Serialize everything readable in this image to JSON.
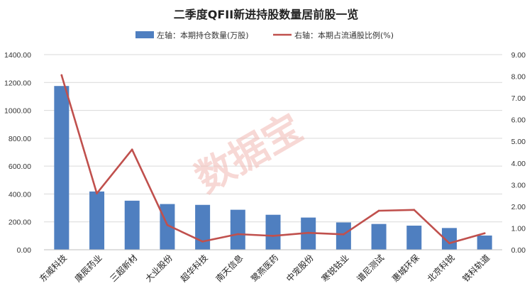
{
  "chart_data": {
    "type": "bar",
    "title": "二季度QFII新进持股数量居前股一览",
    "categories": [
      "东威科技",
      "康辰药业",
      "三超新材",
      "大业股份",
      "超华科技",
      "南天信息",
      "鹭燕医药",
      "中宠股份",
      "寒锐钴业",
      "谱尼测试",
      "惠城环保",
      "北京科锐",
      "铁科轨道"
    ],
    "series": [
      {
        "name": "左轴：本期持仓数量(万股)",
        "type": "bar",
        "axis": "left",
        "values": [
          1175,
          418,
          352,
          328,
          322,
          287,
          251,
          231,
          196,
          185,
          173,
          156,
          102
        ]
      },
      {
        "name": "右轴：本期占流通股比例(%)",
        "type": "line",
        "axis": "right",
        "values": [
          8.05,
          2.6,
          4.62,
          1.14,
          0.38,
          0.72,
          0.64,
          0.78,
          0.71,
          1.8,
          1.84,
          0.3,
          0.76
        ]
      }
    ],
    "y_left": {
      "ylim": [
        0,
        1400
      ],
      "ticks": [
        "0.00",
        "200.00",
        "400.00",
        "600.00",
        "800.00",
        "1000.00",
        "1200.00",
        "1400.00"
      ]
    },
    "y_right": {
      "ylim": [
        0,
        9
      ],
      "ticks": [
        "0.00",
        "1.00",
        "2.00",
        "3.00",
        "4.00",
        "5.00",
        "6.00",
        "7.00",
        "8.00",
        "9.00"
      ]
    },
    "xlabel": "",
    "ylabel": "",
    "grid": true,
    "legend_position": "top-center",
    "colors": {
      "bar": "#4f7fc0",
      "line": "#c0504d",
      "grid": "#d9d9d9",
      "watermark": "#f2b9b3"
    }
  },
  "watermark": "数据宝"
}
